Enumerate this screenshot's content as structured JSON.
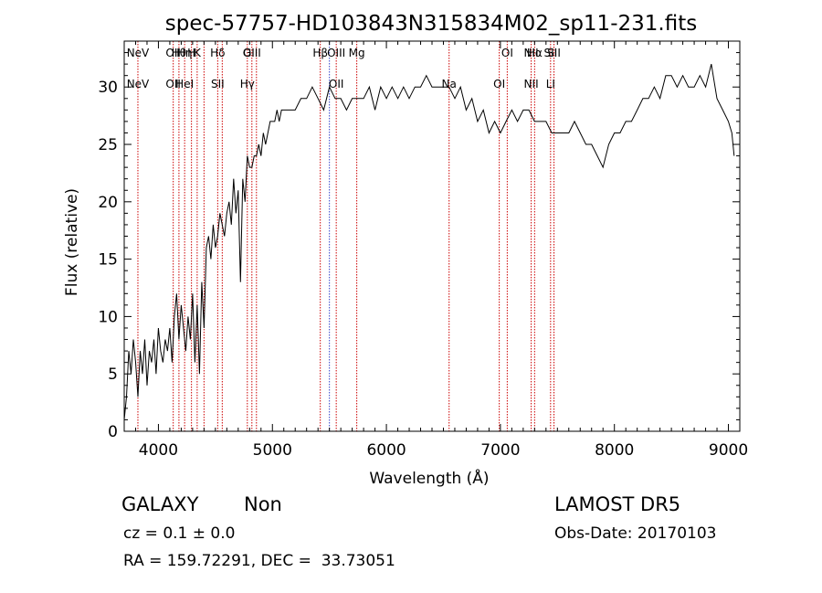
{
  "chart_data": {
    "type": "line",
    "title": "spec-57757-HD103843N315834M02_sp11-231.fits",
    "xlabel": "Wavelength (Å)",
    "ylabel": "Flux (relative)",
    "xlim": [
      3700,
      9100
    ],
    "ylim": [
      0,
      34
    ],
    "xticks": [
      4000,
      5000,
      6000,
      7000,
      8000,
      9000
    ],
    "yticks": [
      0,
      5,
      10,
      15,
      20,
      25,
      30
    ],
    "grid": false,
    "line_color": "#000000",
    "marker_color": "#cc0000",
    "series": [
      {
        "x": [
          3700,
          3720,
          3740,
          3760,
          3780,
          3800,
          3820,
          3840,
          3860,
          3880,
          3900,
          3920,
          3940,
          3960,
          3980,
          4000,
          4020,
          4040,
          4060,
          4080,
          4100,
          4120,
          4140,
          4160,
          4180,
          4200,
          4220,
          4240,
          4260,
          4280,
          4300,
          4320,
          4340,
          4360,
          4380,
          4400,
          4420,
          4440,
          4460,
          4480,
          4500,
          4520,
          4540,
          4560,
          4580,
          4600,
          4620,
          4640,
          4660,
          4680,
          4700,
          4720,
          4740,
          4760,
          4780,
          4800,
          4820,
          4840,
          4860,
          4880,
          4900,
          4920,
          4940,
          4960,
          4980,
          5000,
          5020,
          5040,
          5060,
          5080,
          5100,
          5150,
          5200,
          5250,
          5300,
          5350,
          5400,
          5450,
          5500,
          5550,
          5600,
          5650,
          5700,
          5750,
          5800,
          5850,
          5900,
          5950,
          6000,
          6050,
          6100,
          6150,
          6200,
          6250,
          6300,
          6350,
          6400,
          6450,
          6500,
          6550,
          6600,
          6650,
          6700,
          6750,
          6800,
          6850,
          6900,
          6950,
          7000,
          7050,
          7100,
          7150,
          7200,
          7250,
          7300,
          7350,
          7400,
          7450,
          7500,
          7550,
          7600,
          7650,
          7700,
          7750,
          7800,
          7850,
          7900,
          7950,
          8000,
          8050,
          8100,
          8150,
          8200,
          8250,
          8300,
          8350,
          8400,
          8450,
          8500,
          8550,
          8600,
          8650,
          8700,
          8750,
          8800,
          8850,
          8900,
          8950,
          9000,
          9030,
          9050
        ],
        "y": [
          1,
          3,
          7,
          5,
          8,
          6,
          3,
          7,
          5,
          8,
          4,
          7,
          6,
          8,
          5,
          9,
          7,
          6,
          8,
          7,
          9,
          6,
          10,
          12,
          8,
          11,
          9,
          7,
          10,
          8,
          12,
          6,
          11,
          5,
          13,
          9,
          16,
          17,
          15,
          18,
          16,
          17,
          19,
          18,
          17,
          19,
          20,
          18,
          22,
          19,
          21,
          13,
          22,
          20,
          24,
          23,
          23,
          24,
          24,
          25,
          24,
          26,
          25,
          26,
          27,
          27,
          27,
          28,
          27,
          28,
          28,
          28,
          28,
          29,
          29,
          30,
          29,
          28,
          30,
          29,
          29,
          28,
          29,
          29,
          29,
          30,
          28,
          30,
          29,
          30,
          29,
          30,
          29,
          30,
          30,
          31,
          30,
          30,
          30,
          30,
          29,
          30,
          28,
          29,
          27,
          28,
          26,
          27,
          26,
          27,
          28,
          27,
          28,
          28,
          27,
          27,
          27,
          26,
          26,
          26,
          26,
          27,
          26,
          25,
          25,
          24,
          23,
          25,
          26,
          26,
          27,
          27,
          28,
          29,
          29,
          30,
          29,
          31,
          31,
          30,
          31,
          30,
          30,
          31,
          30,
          32,
          29,
          28,
          27,
          26,
          24
        ]
      }
    ],
    "line_markers": [
      {
        "w": 3820,
        "upper": "NeV",
        "lower": "NeV",
        "color": "#cc0000"
      },
      {
        "w": 4130,
        "upper": "OII",
        "lower": "OII",
        "color": "#cc0000"
      },
      {
        "w": 4180,
        "upper": "Hθ",
        "lower": "",
        "color": "#cc0000"
      },
      {
        "w": 4230,
        "upper": "Hη",
        "lower": "HeI",
        "color": "#cc0000"
      },
      {
        "w": 4290,
        "upper": "H",
        "lower": "",
        "color": "#cc0000"
      },
      {
        "w": 4340,
        "upper": "K",
        "lower": "",
        "color": "#cc0000"
      },
      {
        "w": 4400,
        "upper": "",
        "lower": "",
        "color": "#cc0000"
      },
      {
        "w": 4520,
        "upper": "Hδ",
        "lower": "SII",
        "color": "#cc0000"
      },
      {
        "w": 4560,
        "upper": "",
        "lower": "",
        "color": "#cc0000"
      },
      {
        "w": 4780,
        "upper": "G",
        "lower": "Hγ",
        "color": "#cc0000"
      },
      {
        "w": 4820,
        "upper": "OIII",
        "lower": "",
        "color": "#cc0000"
      },
      {
        "w": 4860,
        "upper": "",
        "lower": "",
        "color": "#cc0000"
      },
      {
        "w": 5420,
        "upper": "Hβ",
        "lower": "",
        "color": "#cc0000"
      },
      {
        "w": 5500,
        "upper": "",
        "lower": "",
        "color": "#3344cc"
      },
      {
        "w": 5560,
        "upper": "OIII",
        "lower": "OII",
        "color": "#cc0000"
      },
      {
        "w": 5740,
        "upper": "Mg",
        "lower": "",
        "color": "#cc0000"
      },
      {
        "w": 6550,
        "upper": "",
        "lower": "Na",
        "color": "#cc0000"
      },
      {
        "w": 6990,
        "upper": "",
        "lower": "OI",
        "color": "#cc0000"
      },
      {
        "w": 7060,
        "upper": "OI",
        "lower": "",
        "color": "#cc0000"
      },
      {
        "w": 7270,
        "upper": "NII",
        "lower": "NII",
        "color": "#cc0000"
      },
      {
        "w": 7300,
        "upper": "Hα",
        "lower": "",
        "color": "#cc0000"
      },
      {
        "w": 7440,
        "upper": "SII",
        "lower": "LI",
        "color": "#cc0000"
      },
      {
        "w": 7470,
        "upper": "SII",
        "lower": "",
        "color": "#cc0000"
      }
    ]
  },
  "info": {
    "class": "GALAXY",
    "subclass": "Non",
    "survey": "LAMOST DR5",
    "cz": "cz = 0.1 ± 0.0",
    "obs_date": "Obs-Date: 20170103",
    "coords": "RA = 159.72291, DEC =  33.73051"
  }
}
